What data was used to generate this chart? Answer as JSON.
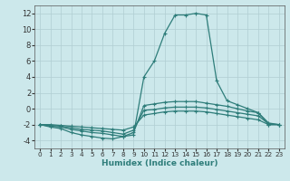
{
  "xlabel": "Humidex (Indice chaleur)",
  "xlim": [
    -0.5,
    23.5
  ],
  "ylim": [
    -5,
    13
  ],
  "yticks": [
    -4,
    -2,
    0,
    2,
    4,
    6,
    8,
    10,
    12
  ],
  "xticks": [
    0,
    1,
    2,
    3,
    4,
    5,
    6,
    7,
    8,
    9,
    10,
    11,
    12,
    13,
    14,
    15,
    16,
    17,
    18,
    19,
    20,
    21,
    22,
    23
  ],
  "bg_color": "#cce8eb",
  "grid_color": "#b0ced2",
  "line_color": "#2e7d7a",
  "lines": [
    {
      "x": [
        0,
        1,
        2,
        3,
        4,
        5,
        6,
        7,
        8,
        9,
        10,
        11,
        12,
        13,
        14,
        15,
        16,
        17,
        18,
        19,
        20,
        21,
        22,
        23
      ],
      "y": [
        -2,
        -2.3,
        -2.5,
        -3,
        -3.3,
        -3.5,
        -3.7,
        -3.8,
        -3.5,
        -3.3,
        4,
        6,
        9.5,
        11.8,
        11.8,
        12,
        11.8,
        3.5,
        1,
        0.5,
        0,
        -0.5,
        -2,
        -2
      ]
    },
    {
      "x": [
        0,
        1,
        2,
        3,
        4,
        5,
        6,
        7,
        8,
        9,
        10,
        11,
        12,
        13,
        14,
        15,
        16,
        17,
        18,
        19,
        20,
        21,
        22,
        23
      ],
      "y": [
        -2,
        -2.2,
        -2.3,
        -2.6,
        -2.8,
        -3.0,
        -3.1,
        -3.3,
        -3.5,
        -3.0,
        0.4,
        0.6,
        0.8,
        0.9,
        0.9,
        0.9,
        0.7,
        0.5,
        0.3,
        0,
        -0.3,
        -0.5,
        -1.8,
        -2
      ]
    },
    {
      "x": [
        0,
        1,
        2,
        3,
        4,
        5,
        6,
        7,
        8,
        9,
        10,
        11,
        12,
        13,
        14,
        15,
        16,
        17,
        18,
        19,
        20,
        21,
        22,
        23
      ],
      "y": [
        -2,
        -2.1,
        -2.2,
        -2.4,
        -2.6,
        -2.7,
        -2.8,
        -3.0,
        -3.2,
        -2.7,
        -0.2,
        -0.1,
        0.1,
        0.2,
        0.2,
        0.2,
        0.1,
        -0.1,
        -0.3,
        -0.5,
        -0.7,
        -0.9,
        -1.9,
        -2
      ]
    },
    {
      "x": [
        0,
        1,
        2,
        3,
        4,
        5,
        6,
        7,
        8,
        9,
        10,
        11,
        12,
        13,
        14,
        15,
        16,
        17,
        18,
        19,
        20,
        21,
        22,
        23
      ],
      "y": [
        -2,
        -2.0,
        -2.1,
        -2.2,
        -2.3,
        -2.4,
        -2.5,
        -2.6,
        -2.7,
        -2.3,
        -0.8,
        -0.6,
        -0.4,
        -0.3,
        -0.3,
        -0.3,
        -0.4,
        -0.6,
        -0.8,
        -1.0,
        -1.2,
        -1.4,
        -2,
        -2
      ]
    }
  ],
  "marker": "+",
  "markersize": 3,
  "markeredgewidth": 0.8,
  "linewidth": 0.9
}
